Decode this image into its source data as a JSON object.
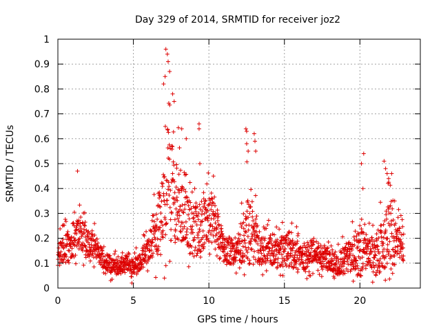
{
  "chart_data": {
    "type": "scatter",
    "title": "Day 329 of 2014, SRMTID for receiver joz2",
    "xlabel": "GPS time / hours",
    "ylabel": "SRMTID / TECUs",
    "xlim": [
      0,
      24
    ],
    "ylim": [
      0,
      1
    ],
    "x_ticks": [
      0,
      5,
      10,
      15,
      20
    ],
    "x_tick_labels": [
      "0",
      "5",
      "10",
      "15",
      "20"
    ],
    "y_ticks": [
      0,
      0.1,
      0.2,
      0.3,
      0.4,
      0.5,
      0.6,
      0.7,
      0.8,
      0.9,
      1
    ],
    "y_tick_labels": [
      "0",
      "0.1",
      "0.2",
      "0.3",
      "0.4",
      "0.5",
      "0.6",
      "0.7",
      "0.8",
      "0.9",
      "1"
    ],
    "grid": true,
    "marker": "+",
    "color": "#dd0000",
    "series": [
      {
        "name": "SRMTID",
        "envelope": {
          "description": "approximate point cloud: x in hours, base level and spread in TECU",
          "x_start": 0.0,
          "x_end": 22.9,
          "sample_step": 0.012,
          "base_profile": [
            [
              0.0,
              0.13
            ],
            [
              0.5,
              0.15
            ],
            [
              1.0,
              0.19
            ],
            [
              1.5,
              0.2
            ],
            [
              2.0,
              0.17
            ],
            [
              2.5,
              0.16
            ],
            [
              3.0,
              0.11
            ],
            [
              3.5,
              0.09
            ],
            [
              4.0,
              0.08
            ],
            [
              4.5,
              0.1
            ],
            [
              5.0,
              0.08
            ],
            [
              5.5,
              0.11
            ],
            [
              6.0,
              0.15
            ],
            [
              6.5,
              0.22
            ],
            [
              7.0,
              0.3
            ],
            [
              7.2,
              0.42
            ],
            [
              7.5,
              0.36
            ],
            [
              8.0,
              0.32
            ],
            [
              8.5,
              0.25
            ],
            [
              9.0,
              0.22
            ],
            [
              9.5,
              0.24
            ],
            [
              10.0,
              0.27
            ],
            [
              10.5,
              0.25
            ],
            [
              11.0,
              0.16
            ],
            [
              11.5,
              0.14
            ],
            [
              12.0,
              0.16
            ],
            [
              12.5,
              0.22
            ],
            [
              13.0,
              0.18
            ],
            [
              13.5,
              0.14
            ],
            [
              14.0,
              0.15
            ],
            [
              14.5,
              0.13
            ],
            [
              15.0,
              0.14
            ],
            [
              15.5,
              0.15
            ],
            [
              16.0,
              0.12
            ],
            [
              16.5,
              0.12
            ],
            [
              17.0,
              0.15
            ],
            [
              17.5,
              0.12
            ],
            [
              18.0,
              0.11
            ],
            [
              18.5,
              0.09
            ],
            [
              19.0,
              0.11
            ],
            [
              19.5,
              0.13
            ],
            [
              20.0,
              0.14
            ],
            [
              20.5,
              0.13
            ],
            [
              21.0,
              0.12
            ],
            [
              21.5,
              0.16
            ],
            [
              22.0,
              0.2
            ],
            [
              22.5,
              0.17
            ],
            [
              22.9,
              0.16
            ]
          ],
          "spread_profile": [
            [
              0.0,
              0.1
            ],
            [
              1.0,
              0.15
            ],
            [
              2.0,
              0.12
            ],
            [
              3.0,
              0.07
            ],
            [
              4.0,
              0.06
            ],
            [
              5.0,
              0.06
            ],
            [
              6.0,
              0.1
            ],
            [
              6.5,
              0.22
            ],
            [
              7.0,
              0.35
            ],
            [
              7.3,
              0.45
            ],
            [
              7.8,
              0.35
            ],
            [
              8.5,
              0.22
            ],
            [
              9.3,
              0.22
            ],
            [
              10.2,
              0.18
            ],
            [
              11.0,
              0.1
            ],
            [
              12.0,
              0.12
            ],
            [
              12.5,
              0.3
            ],
            [
              13.0,
              0.28
            ],
            [
              13.5,
              0.12
            ],
            [
              14.5,
              0.12
            ],
            [
              15.5,
              0.15
            ],
            [
              16.5,
              0.1
            ],
            [
              17.5,
              0.1
            ],
            [
              18.5,
              0.09
            ],
            [
              19.5,
              0.15
            ],
            [
              20.0,
              0.22
            ],
            [
              20.5,
              0.12
            ],
            [
              21.5,
              0.2
            ],
            [
              22.0,
              0.3
            ],
            [
              22.5,
              0.15
            ],
            [
              22.9,
              0.12
            ]
          ]
        },
        "notable_points": [
          {
            "x": 1.3,
            "y": 0.47
          },
          {
            "x": 7.15,
            "y": 0.96
          },
          {
            "x": 7.25,
            "y": 0.94
          },
          {
            "x": 7.3,
            "y": 0.91
          },
          {
            "x": 7.1,
            "y": 0.85
          },
          {
            "x": 7.4,
            "y": 0.87
          },
          {
            "x": 7.0,
            "y": 0.82
          },
          {
            "x": 7.6,
            "y": 0.78
          },
          {
            "x": 7.7,
            "y": 0.75
          },
          {
            "x": 8.2,
            "y": 0.64
          },
          {
            "x": 8.5,
            "y": 0.6
          },
          {
            "x": 9.35,
            "y": 0.66
          },
          {
            "x": 9.35,
            "y": 0.64
          },
          {
            "x": 9.4,
            "y": 0.5
          },
          {
            "x": 10.3,
            "y": 0.45
          },
          {
            "x": 12.45,
            "y": 0.64
          },
          {
            "x": 12.5,
            "y": 0.63
          },
          {
            "x": 12.5,
            "y": 0.58
          },
          {
            "x": 12.6,
            "y": 0.55
          },
          {
            "x": 13.0,
            "y": 0.62
          },
          {
            "x": 13.05,
            "y": 0.59
          },
          {
            "x": 13.1,
            "y": 0.55
          },
          {
            "x": 20.1,
            "y": 0.5
          },
          {
            "x": 20.25,
            "y": 0.54
          },
          {
            "x": 20.2,
            "y": 0.4
          },
          {
            "x": 21.6,
            "y": 0.51
          },
          {
            "x": 21.7,
            "y": 0.48
          },
          {
            "x": 21.8,
            "y": 0.46
          },
          {
            "x": 21.9,
            "y": 0.44
          },
          {
            "x": 22.1,
            "y": 0.46
          },
          {
            "x": 22.3,
            "y": 0.35
          },
          {
            "x": 4.9,
            "y": 0.02
          },
          {
            "x": 3.5,
            "y": 0.03
          },
          {
            "x": 14.9,
            "y": 0.05
          },
          {
            "x": 18.3,
            "y": 0.04
          }
        ]
      }
    ]
  }
}
